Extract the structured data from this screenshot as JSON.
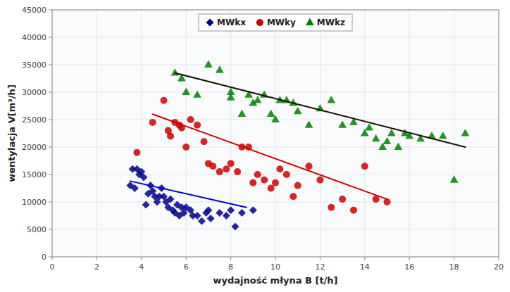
{
  "chart_data": {
    "type": "scatter",
    "xlabel": "wydajność młyna B [t/h]",
    "ylabel": "wentylacja V[m³/h]",
    "xlim": [
      0,
      20
    ],
    "ylim": [
      0,
      45000
    ],
    "xticks": [
      0,
      2,
      4,
      6,
      8,
      10,
      12,
      14,
      16,
      18,
      20
    ],
    "yticks": [
      0,
      5000,
      10000,
      15000,
      20000,
      25000,
      30000,
      35000,
      40000,
      45000
    ],
    "grid": true,
    "legend": "upper center",
    "series": [
      {
        "name": "MWkx",
        "color": "#00008B",
        "marker": "diamond",
        "x": [
          3.5,
          3.6,
          3.7,
          3.8,
          3.9,
          4.0,
          4.1,
          4.2,
          4.3,
          4.4,
          4.5,
          4.6,
          4.7,
          4.8,
          4.9,
          5.0,
          5.1,
          5.2,
          5.3,
          5.4,
          5.5,
          5.6,
          5.7,
          5.8,
          5.9,
          6.0,
          6.2,
          6.3,
          6.5,
          6.7,
          6.9,
          7.0,
          7.1,
          7.5,
          7.8,
          8.0,
          8.2,
          8.5,
          9.0
        ],
        "values": [
          13000,
          16000,
          12500,
          16000,
          15000,
          15500,
          14500,
          9500,
          11500,
          13000,
          12000,
          11000,
          10000,
          11000,
          12500,
          11000,
          10000,
          9000,
          10500,
          8500,
          8000,
          9500,
          7500,
          9000,
          8000,
          9000,
          8500,
          7500,
          7500,
          6500,
          8000,
          8500,
          7000,
          8000,
          7500,
          8500,
          5500,
          8000,
          8500
        ],
        "trend": {
          "x": [
            3.5,
            8.7
          ],
          "values": [
            13800,
            9000
          ],
          "color": "#0000CD"
        }
      },
      {
        "name": "MWky",
        "color": "#CC0000",
        "marker": "circle",
        "x": [
          3.8,
          4.5,
          5.0,
          5.2,
          5.3,
          5.5,
          5.7,
          5.8,
          6.0,
          6.2,
          6.5,
          6.8,
          7.0,
          7.2,
          7.5,
          7.8,
          8.0,
          8.3,
          8.5,
          8.8,
          9.0,
          9.2,
          9.5,
          9.8,
          10.0,
          10.2,
          10.5,
          10.8,
          11.0,
          11.5,
          12.0,
          12.5,
          13.0,
          13.5,
          14.0,
          14.5,
          15.0
        ],
        "values": [
          19000,
          24500,
          28500,
          23000,
          22000,
          24500,
          24000,
          23500,
          20000,
          25000,
          24000,
          21000,
          17000,
          16500,
          15500,
          16000,
          17000,
          15500,
          20000,
          20000,
          13500,
          15000,
          14000,
          12500,
          13500,
          16000,
          15000,
          11000,
          13000,
          16500,
          14000,
          9000,
          10500,
          8500,
          16500,
          10500,
          10000
        ],
        "trend": {
          "x": [
            4.5,
            15.0
          ],
          "values": [
            26000,
            10500
          ],
          "color": "#CC0000"
        }
      },
      {
        "name": "MWkz",
        "color": "#008000",
        "marker": "triangle",
        "x": [
          5.5,
          5.8,
          6.0,
          6.5,
          7.0,
          7.5,
          8.0,
          8.0,
          8.5,
          8.8,
          9.0,
          9.2,
          9.5,
          9.8,
          10.0,
          10.2,
          10.5,
          10.8,
          11.0,
          11.5,
          12.0,
          12.5,
          13.0,
          13.5,
          14.0,
          14.2,
          14.5,
          14.8,
          15.0,
          15.2,
          15.5,
          15.8,
          16.0,
          16.5,
          17.0,
          17.5,
          18.0,
          18.5
        ],
        "values": [
          33500,
          32500,
          30000,
          29500,
          35000,
          34000,
          30000,
          29000,
          26000,
          29500,
          28000,
          28500,
          29500,
          26000,
          25000,
          28500,
          28500,
          28000,
          26500,
          24000,
          27000,
          28500,
          24000,
          24500,
          22500,
          23500,
          21500,
          20000,
          21000,
          22500,
          20000,
          22500,
          22000,
          21500,
          22000,
          22000,
          14000,
          22500
        ],
        "trend": {
          "x": [
            5.5,
            18.5
          ],
          "values": [
            33500,
            20000
          ],
          "color": "#1a1200"
        }
      }
    ]
  }
}
